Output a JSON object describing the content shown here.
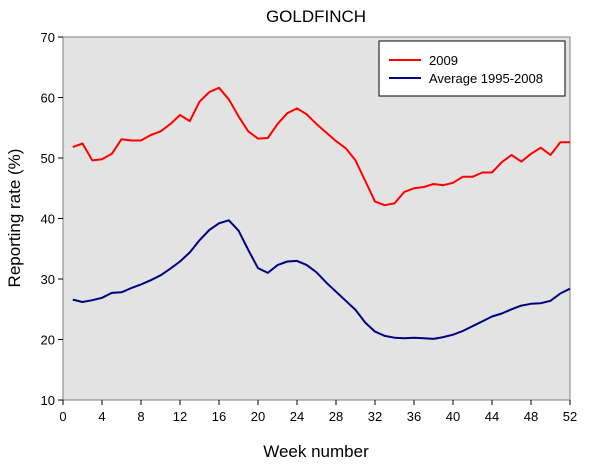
{
  "chart_data": {
    "type": "line",
    "title": "GOLDFINCH",
    "xlabel": "Week number",
    "ylabel": "Reporting rate (%)",
    "xlim": [
      0,
      52
    ],
    "ylim": [
      10,
      70
    ],
    "xticks": [
      0,
      4,
      8,
      12,
      16,
      20,
      24,
      28,
      32,
      36,
      40,
      44,
      48,
      52
    ],
    "yticks": [
      10,
      20,
      30,
      40,
      50,
      60,
      70
    ],
    "grid": false,
    "legend_position": "top-right",
    "x": [
      1,
      2,
      3,
      4,
      5,
      6,
      7,
      8,
      9,
      10,
      11,
      12,
      13,
      14,
      15,
      16,
      17,
      18,
      19,
      20,
      21,
      22,
      23,
      24,
      25,
      26,
      27,
      28,
      29,
      30,
      31,
      32,
      33,
      34,
      35,
      36,
      37,
      38,
      39,
      40,
      41,
      42,
      43,
      44,
      45,
      46,
      47,
      48,
      49,
      50,
      51,
      52
    ],
    "series": [
      {
        "name": "2009",
        "color": "#ff0000",
        "values": [
          51.8,
          52.4,
          49.6,
          49.8,
          50.7,
          53.1,
          52.9,
          52.9,
          53.8,
          54.4,
          55.6,
          57.1,
          56.1,
          59.3,
          60.9,
          61.6,
          59.7,
          56.9,
          54.4,
          53.2,
          53.3,
          55.6,
          57.4,
          58.2,
          57.2,
          55.6,
          54.2,
          52.8,
          51.6,
          49.6,
          46.2,
          42.8,
          42.2,
          42.5,
          44.4,
          45.0,
          45.2,
          45.7,
          45.5,
          45.9,
          46.9,
          46.9,
          47.6,
          47.6,
          49.3,
          50.5,
          49.4,
          50.7,
          51.7,
          50.5,
          52.6,
          52.6
        ]
      },
      {
        "name": "Average 1995-2008",
        "color": "#000080",
        "values": [
          26.6,
          26.2,
          26.5,
          26.9,
          27.7,
          27.8,
          28.5,
          29.1,
          29.8,
          30.6,
          31.7,
          32.9,
          34.4,
          36.4,
          38.1,
          39.2,
          39.7,
          38.0,
          34.8,
          31.8,
          31.0,
          32.3,
          32.9,
          33.0,
          32.3,
          31.1,
          29.4,
          27.9,
          26.4,
          24.9,
          22.8,
          21.3,
          20.6,
          20.3,
          20.2,
          20.3,
          20.2,
          20.1,
          20.4,
          20.8,
          21.4,
          22.2,
          23.0,
          23.8,
          24.3,
          25.0,
          25.6,
          25.9,
          26.0,
          26.4,
          27.6,
          28.4
        ]
      }
    ]
  }
}
